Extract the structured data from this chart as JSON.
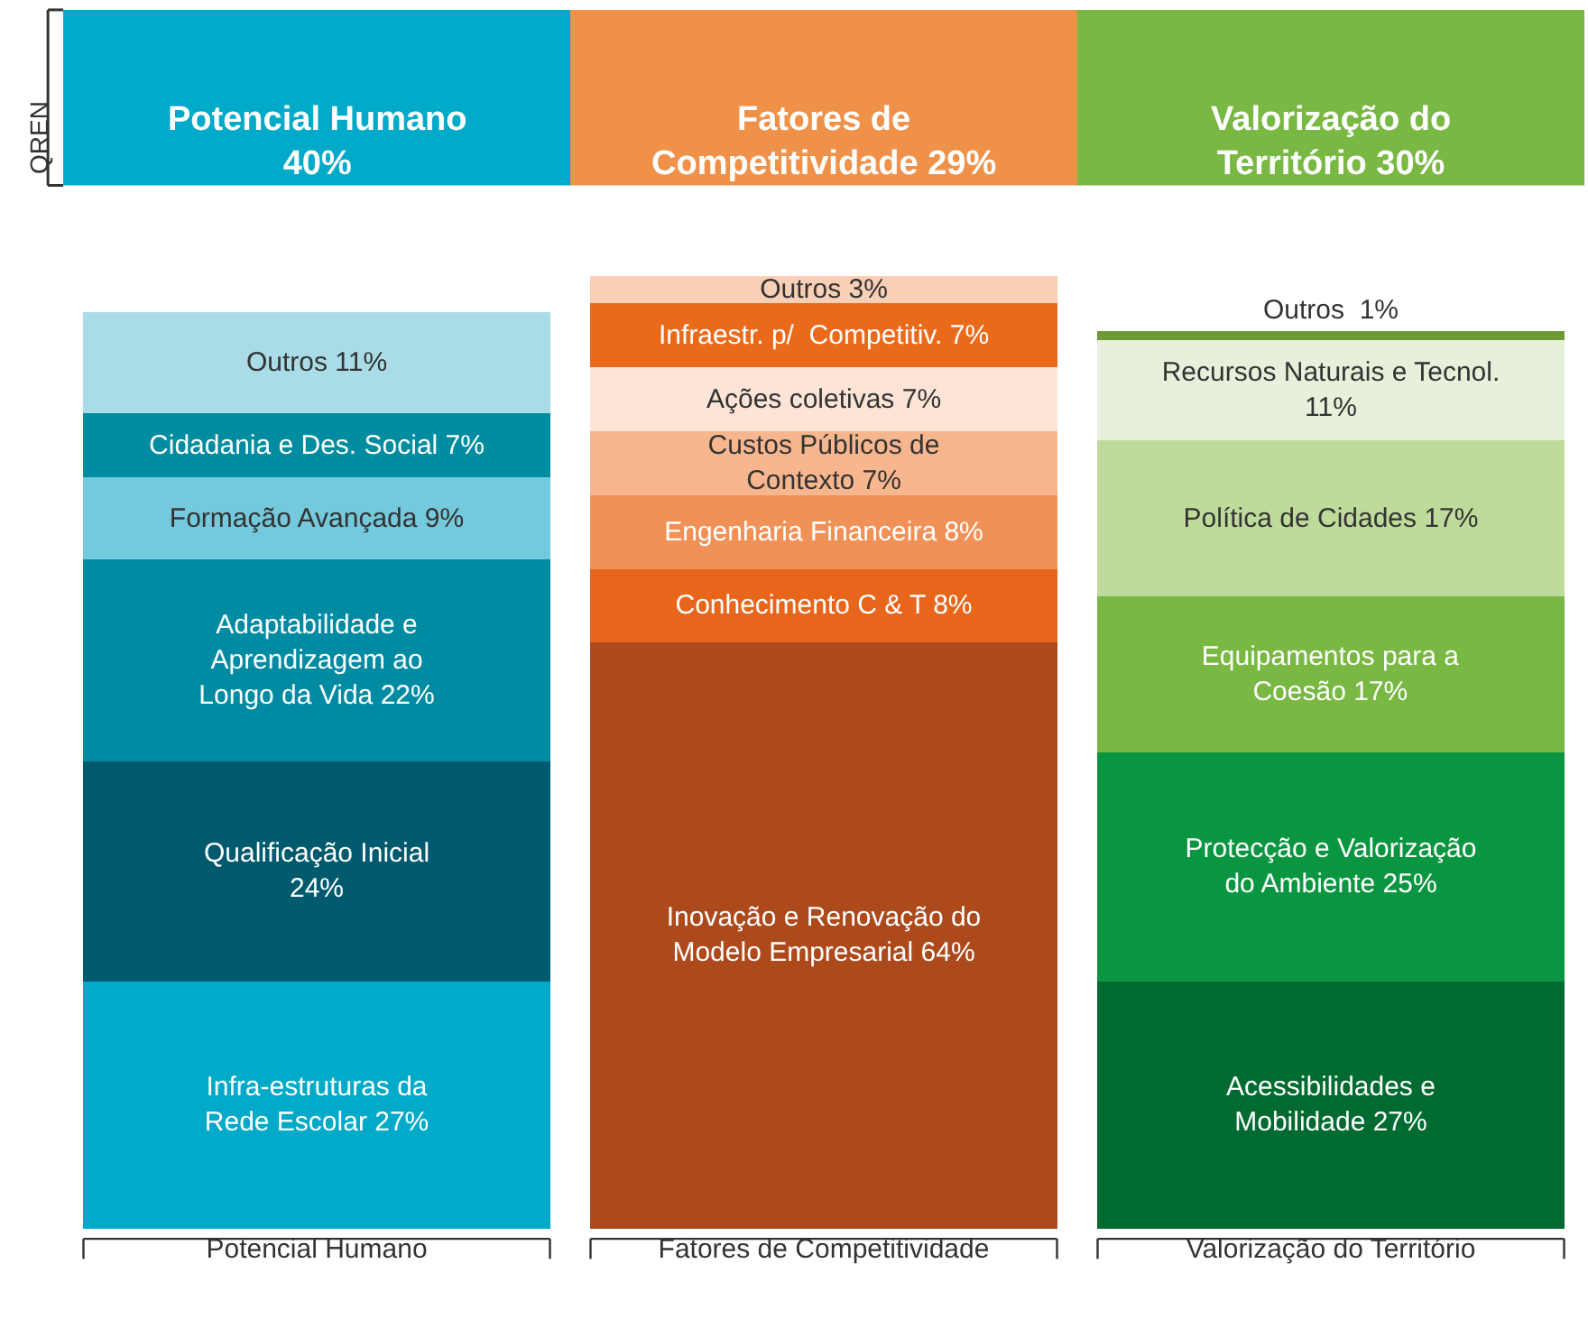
{
  "chart_data": {
    "type": "bar",
    "stacked": true,
    "tick_labels": "x",
    "categories": [
      "Potencial Humano",
      "Fatores de Competitividade",
      "Valorização do Território"
    ],
    "annotations": [
      "Potencial Humano\n40%",
      "Fatores de\nCompetitividade 29%",
      "Valorização do\nTerritório 30%",
      "QREN"
    ],
    "series": [
      {
        "color": "#00aac8",
        "values": [
          27,
          null,
          null
        ],
        "value_labels": [
          "Infra-estruturas da\nRede Escolar 27%",
          null,
          null
        ]
      },
      {
        "color": "#005a6e",
        "values": [
          24,
          null,
          null
        ],
        "value_labels": [
          "Qualificação Inicial\n24%",
          null,
          null
        ]
      },
      {
        "color": "#008ba3",
        "values": [
          22,
          null,
          null
        ],
        "value_labels": [
          "Adaptabilidade e\nAprendizagem ao\nLongo da Vida 22%",
          null,
          null
        ]
      },
      {
        "color": "#74c9dc",
        "values": [
          9,
          null,
          null
        ],
        "value_labels": [
          "Formação Avançada 9%",
          null,
          null
        ]
      },
      {
        "color": "#008ca0",
        "values": [
          7,
          null,
          null
        ],
        "value_labels": [
          "Cidadania e Des. Social 7%",
          null,
          null
        ]
      },
      {
        "color": "#a9dce6",
        "values": [
          11,
          null,
          null
        ],
        "value_labels": [
          "Outros 11%",
          null,
          null
        ]
      },
      {
        "color": "#ad4a1c",
        "values": [
          null,
          64,
          null
        ],
        "value_labels": [
          null,
          "Inovação e Renovação do\nModelo Empresarial 64%",
          null
        ]
      },
      {
        "color": "#e8661b",
        "values": [
          null,
          8,
          null
        ],
        "value_labels": [
          null,
          "Conhecimento C & T 8%",
          null
        ]
      },
      {
        "color": "#f09157",
        "values": [
          null,
          8,
          null
        ],
        "value_labels": [
          null,
          "Engenharia Financeira 8%",
          null
        ]
      },
      {
        "color": "#f7b68e",
        "values": [
          null,
          7,
          null
        ],
        "value_labels": [
          null,
          "Custos Públicos de\nContexto 7%",
          null
        ]
      },
      {
        "color": "#fce5d6",
        "values": [
          null,
          7,
          null
        ],
        "value_labels": [
          null,
          "Ações coletivas 7%",
          null
        ]
      },
      {
        "color": "#ea6a1c",
        "values": [
          null,
          7,
          null
        ],
        "value_labels": [
          null,
          "Infraestr. p/  Competitiv. 7%",
          null
        ]
      },
      {
        "color": "#f9cfb5",
        "values": [
          null,
          3,
          null
        ],
        "value_labels": [
          null,
          "Outros 3%",
          null
        ]
      },
      {
        "color": "#006b30",
        "values": [
          null,
          null,
          27
        ],
        "value_labels": [
          null,
          null,
          "Acessibilidades e\nMobilidade 27%"
        ]
      },
      {
        "color": "#0a9640",
        "values": [
          null,
          null,
          25
        ],
        "value_labels": [
          null,
          null,
          "Protecção e Valorização\ndo Ambiente 25%"
        ]
      },
      {
        "color": "#78b843",
        "values": [
          null,
          null,
          17
        ],
        "value_labels": [
          null,
          null,
          "Equipamentos para a\nCoesão 17%"
        ]
      },
      {
        "color": "#bfdb9c",
        "values": [
          null,
          null,
          17
        ],
        "value_labels": [
          null,
          null,
          "Política de Cidades 17%"
        ]
      },
      {
        "color": "#e6f0da",
        "values": [
          null,
          null,
          11
        ],
        "value_labels": [
          null,
          null,
          "Recursos Naturais e Tecnol.\n11%"
        ]
      },
      {
        "color": "#6e9a36",
        "values": [
          null,
          null,
          1
        ],
        "value_labels": [
          null,
          null,
          "Outros  1%"
        ]
      }
    ]
  }
}
